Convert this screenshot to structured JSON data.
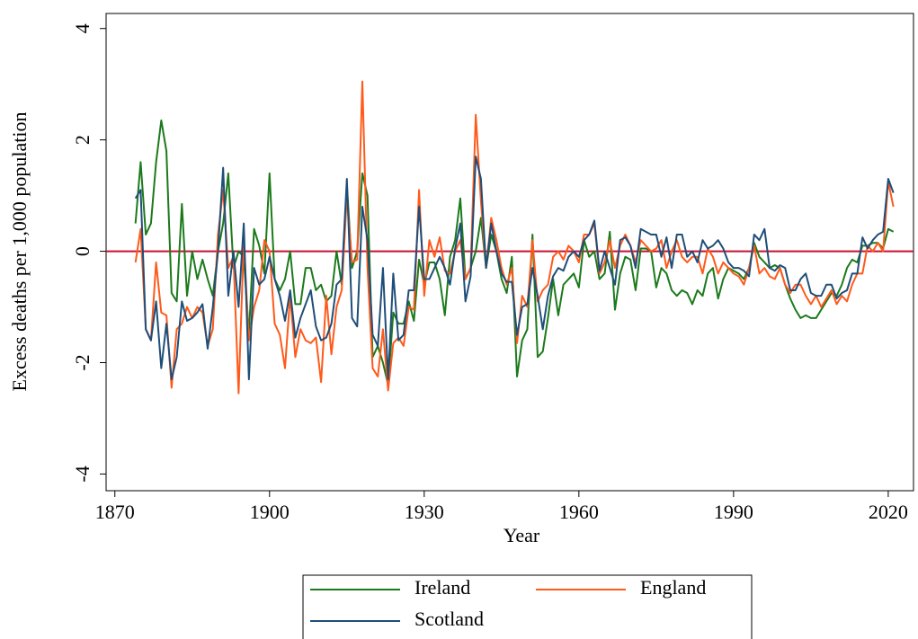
{
  "chart_data": {
    "type": "line",
    "x_label": "Year",
    "y_label": "Excess deaths per 1,000 population",
    "x": [
      1874,
      1875,
      1876,
      1877,
      1878,
      1879,
      1880,
      1881,
      1882,
      1883,
      1884,
      1885,
      1886,
      1887,
      1888,
      1889,
      1890,
      1891,
      1892,
      1893,
      1894,
      1895,
      1896,
      1897,
      1898,
      1899,
      1900,
      1901,
      1902,
      1903,
      1904,
      1905,
      1906,
      1907,
      1908,
      1909,
      1910,
      1911,
      1912,
      1913,
      1914,
      1915,
      1916,
      1917,
      1918,
      1919,
      1920,
      1921,
      1922,
      1923,
      1924,
      1925,
      1926,
      1927,
      1928,
      1929,
      1930,
      1931,
      1932,
      1933,
      1934,
      1935,
      1936,
      1937,
      1938,
      1939,
      1940,
      1941,
      1942,
      1943,
      1944,
      1945,
      1946,
      1947,
      1948,
      1949,
      1950,
      1951,
      1952,
      1953,
      1954,
      1955,
      1956,
      1957,
      1958,
      1959,
      1960,
      1961,
      1962,
      1963,
      1964,
      1965,
      1966,
      1967,
      1968,
      1969,
      1970,
      1971,
      1972,
      1973,
      1974,
      1975,
      1976,
      1977,
      1978,
      1979,
      1980,
      1981,
      1982,
      1983,
      1984,
      1985,
      1986,
      1987,
      1988,
      1989,
      1990,
      1991,
      1992,
      1993,
      1994,
      1995,
      1996,
      1997,
      1998,
      1999,
      2000,
      2001,
      2002,
      2003,
      2004,
      2005,
      2006,
      2007,
      2008,
      2009,
      2010,
      2011,
      2012,
      2013,
      2014,
      2015,
      2016,
      2017,
      2018,
      2019,
      2020,
      2021
    ],
    "series": [
      {
        "name": "Ireland",
        "color": "#1c7a1c",
        "values": [
          0.5,
          1.6,
          0.3,
          0.5,
          1.6,
          2.35,
          1.8,
          -0.75,
          -0.9,
          0.85,
          -0.8,
          0.0,
          -0.5,
          -0.15,
          -0.5,
          -0.8,
          0.0,
          0.5,
          1.4,
          -0.3,
          0.0,
          -0.1,
          -1.5,
          0.4,
          0.1,
          -0.4,
          1.4,
          -0.5,
          -0.7,
          -0.5,
          0.0,
          -0.95,
          -0.95,
          -0.3,
          -0.3,
          -0.7,
          -0.6,
          -0.9,
          -0.8,
          0.0,
          -0.6,
          1.2,
          -0.3,
          0.0,
          1.4,
          1.0,
          -1.9,
          -1.7,
          -2.0,
          -2.4,
          -1.1,
          -1.3,
          -1.3,
          -0.9,
          -1.25,
          -0.15,
          -0.6,
          -0.2,
          -0.2,
          -0.5,
          -1.15,
          -0.1,
          0.2,
          0.95,
          -0.5,
          -0.3,
          0.0,
          0.6,
          -0.3,
          0.3,
          0.0,
          -0.5,
          -0.75,
          -0.1,
          -2.25,
          -1.6,
          -1.4,
          0.3,
          -1.9,
          -1.8,
          -1.2,
          -0.5,
          -1.15,
          -0.6,
          -0.5,
          -0.4,
          -0.65,
          0.2,
          -0.1,
          0.0,
          -0.5,
          -0.4,
          0.35,
          -1.05,
          -0.4,
          -0.1,
          -0.15,
          -0.7,
          0.05,
          0.05,
          0.0,
          -0.65,
          -0.3,
          -0.4,
          -0.7,
          -0.8,
          -0.7,
          -0.75,
          -0.95,
          -0.7,
          -0.8,
          -0.4,
          -0.3,
          -0.85,
          -0.5,
          -0.3,
          -0.35,
          -0.4,
          -0.5,
          -0.3,
          0.15,
          -0.1,
          -0.2,
          -0.3,
          -0.25,
          -0.3,
          -0.6,
          -0.85,
          -1.05,
          -1.2,
          -1.15,
          -1.2,
          -1.2,
          -1.05,
          -0.9,
          -0.75,
          -0.8,
          -0.6,
          -0.3,
          -0.15,
          -0.2,
          0.1,
          0.1,
          0.15,
          0.15,
          0.05,
          0.4,
          0.35
        ]
      },
      {
        "name": "England",
        "color": "#ff5a1a",
        "values": [
          -0.2,
          0.4,
          -1.4,
          -1.6,
          -0.2,
          -1.1,
          -1.15,
          -2.45,
          -1.4,
          -1.3,
          -1.0,
          -1.2,
          -1.0,
          -1.1,
          -1.7,
          -1.4,
          0.3,
          1.1,
          -0.3,
          -0.1,
          -2.55,
          0.2,
          -1.6,
          -1.0,
          -0.7,
          0.2,
          0.0,
          -1.3,
          -1.5,
          -2.1,
          -0.8,
          -1.9,
          -1.4,
          -1.6,
          -1.65,
          -1.55,
          -2.35,
          -0.8,
          -1.85,
          -1.0,
          -0.7,
          1.0,
          -0.2,
          -0.15,
          3.05,
          -0.3,
          -2.1,
          -2.25,
          -1.4,
          -2.5,
          -1.65,
          -1.55,
          -1.7,
          -1.0,
          -1.05,
          1.1,
          -0.8,
          0.2,
          -0.1,
          0.25,
          -0.35,
          -0.4,
          0.0,
          0.2,
          -0.5,
          -0.3,
          2.45,
          0.9,
          -0.3,
          0.6,
          0.2,
          -0.3,
          -0.6,
          -0.3,
          -1.65,
          -0.8,
          -1.0,
          0.2,
          -0.9,
          -0.7,
          -0.6,
          -0.1,
          0.0,
          -0.15,
          0.1,
          0.0,
          -0.2,
          0.3,
          0.3,
          0.5,
          -0.4,
          -0.2,
          0.2,
          -0.3,
          0.1,
          0.3,
          0.1,
          -0.2,
          0.2,
          0.1,
          0.0,
          0.05,
          0.2,
          -0.3,
          0.0,
          0.2,
          -0.1,
          -0.2,
          -0.1,
          -0.1,
          -0.4,
          0.05,
          -0.1,
          -0.4,
          -0.2,
          -0.3,
          -0.4,
          -0.45,
          -0.6,
          -0.3,
          0.1,
          -0.4,
          -0.3,
          -0.45,
          -0.5,
          -0.3,
          -0.6,
          -0.75,
          -0.6,
          -0.6,
          -0.8,
          -0.95,
          -0.8,
          -1.0,
          -0.85,
          -0.7,
          -0.95,
          -0.8,
          -0.9,
          -0.6,
          -0.4,
          -0.4,
          0.1,
          0.0,
          0.15,
          0.0,
          1.25,
          0.8
        ]
      },
      {
        "name": "Scotland",
        "color": "#1f4e79",
        "values": [
          0.95,
          1.1,
          -1.4,
          -1.6,
          -0.9,
          -2.1,
          -1.3,
          -2.3,
          -1.9,
          -0.9,
          -1.25,
          -1.2,
          -1.1,
          -0.95,
          -1.75,
          -1.0,
          0.0,
          1.5,
          -0.8,
          0.0,
          -1.0,
          0.5,
          -2.3,
          -0.3,
          -0.6,
          -0.5,
          -0.1,
          -0.5,
          -0.8,
          -1.25,
          -0.7,
          -1.55,
          -1.2,
          -0.95,
          -0.7,
          -1.35,
          -1.6,
          -1.55,
          -1.3,
          -0.6,
          -0.5,
          1.3,
          -1.2,
          -1.35,
          0.8,
          0.2,
          -1.5,
          -1.7,
          -0.3,
          -2.3,
          -0.4,
          -1.6,
          -1.5,
          -0.7,
          -0.7,
          0.8,
          -0.5,
          -0.5,
          -0.3,
          -0.1,
          -0.3,
          -0.6,
          0.05,
          0.5,
          -0.9,
          -0.45,
          1.7,
          1.3,
          -0.3,
          0.5,
          0.0,
          -0.4,
          -0.55,
          -0.55,
          -1.5,
          -1.0,
          -0.95,
          -0.3,
          -0.8,
          -1.4,
          -0.8,
          -0.45,
          -0.3,
          -0.35,
          -0.1,
          0.0,
          -0.1,
          0.2,
          0.3,
          0.55,
          -0.35,
          0.0,
          -0.3,
          -0.6,
          0.2,
          0.25,
          0.1,
          -0.3,
          0.4,
          0.35,
          0.3,
          0.3,
          -0.1,
          0.25,
          -0.3,
          0.3,
          0.3,
          -0.1,
          0.0,
          -0.2,
          0.2,
          0.05,
          0.1,
          0.2,
          0.05,
          -0.2,
          -0.3,
          -0.3,
          -0.35,
          -0.45,
          0.3,
          0.2,
          0.4,
          -0.3,
          -0.35,
          -0.25,
          -0.3,
          -0.7,
          -0.7,
          -0.5,
          -0.4,
          -0.75,
          -0.8,
          -0.8,
          -0.6,
          -0.6,
          -0.85,
          -0.75,
          -0.7,
          -0.4,
          -0.4,
          0.25,
          0.05,
          0.2,
          0.3,
          0.35,
          1.3,
          1.05
        ]
      }
    ],
    "xlim": [
      1868.3,
      2024.9
    ],
    "xticks": [
      1870,
      1900,
      1930,
      1960,
      1990,
      2020
    ],
    "ylim": [
      -4.3,
      4.27
    ],
    "yticks": [
      -4,
      -2,
      0,
      2,
      4
    ],
    "reference_line": {
      "value": 0,
      "color": "#c8102e"
    },
    "legend": "bottom"
  }
}
